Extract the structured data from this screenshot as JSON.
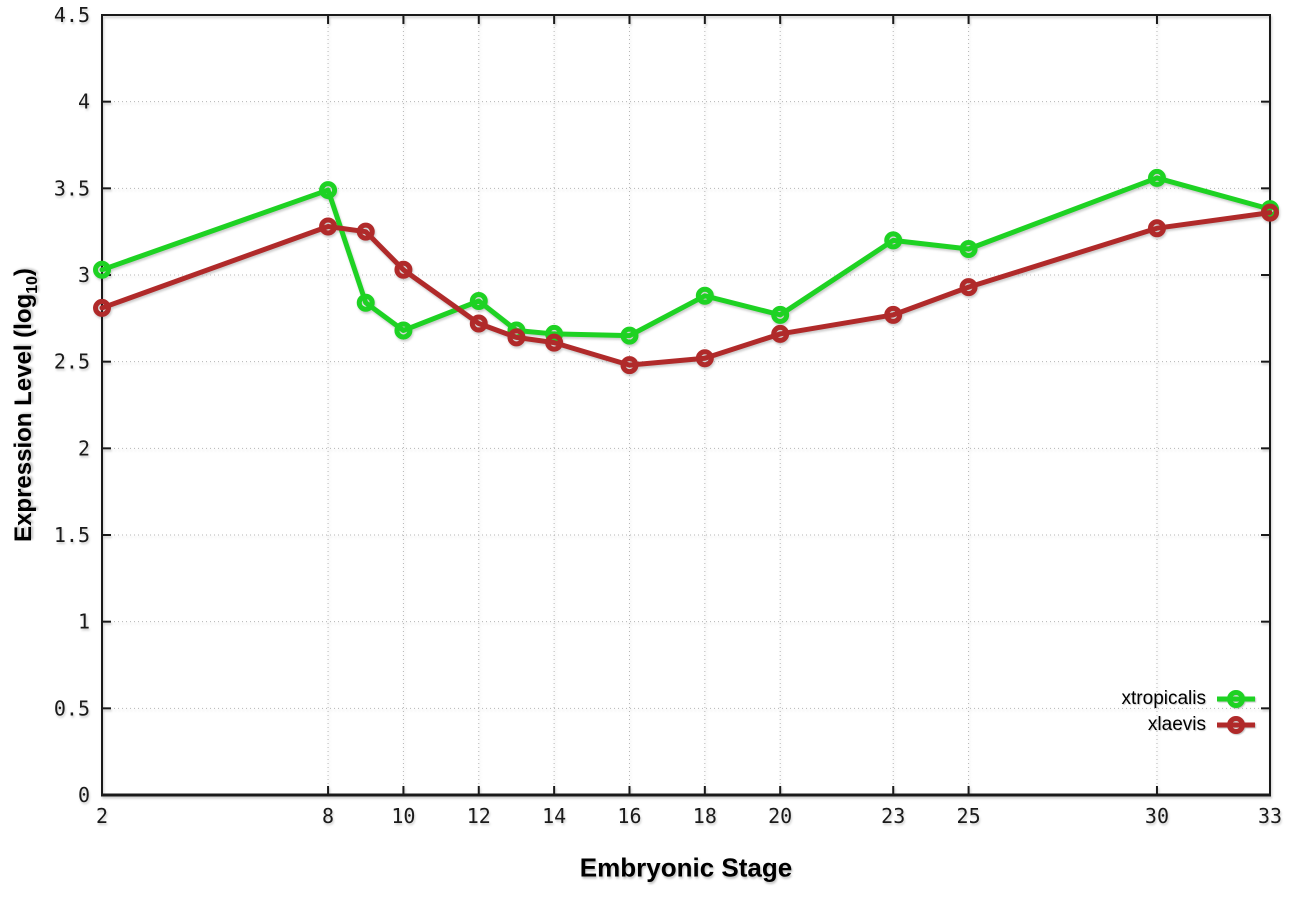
{
  "chart_data": {
    "type": "line",
    "title": "",
    "xlabel": "Embryonic Stage",
    "ylabel": "Expression Level (log10)",
    "ylabel_prefix": "Expression Level (log",
    "ylabel_sub": "10",
    "ylabel_suffix": ")",
    "xlim": [
      2,
      33
    ],
    "ylim": [
      0,
      4.5
    ],
    "grid": true,
    "grid_style": "dotted",
    "legend_position": "inside-bottom-right",
    "x_tick_values": [
      2,
      8,
      10,
      12,
      14,
      16,
      18,
      20,
      23,
      25,
      30,
      33
    ],
    "x_tick_labels": [
      "2",
      "8",
      "10",
      "12",
      "14",
      "16",
      "18",
      "20",
      "23",
      "25",
      "30",
      "33"
    ],
    "y_tick_values": [
      0,
      0.5,
      1,
      1.5,
      2,
      2.5,
      3,
      3.5,
      4,
      4.5
    ],
    "y_tick_labels": [
      "0",
      "0.5",
      "1",
      "1.5",
      "2",
      "2.5",
      "3",
      "3.5",
      "4",
      "4.5"
    ],
    "x": [
      2,
      8,
      9,
      10,
      12,
      13,
      14,
      16,
      18,
      20,
      23,
      25,
      30,
      33
    ],
    "series": [
      {
        "name": "xtropicalis",
        "color": "#1ed223",
        "marker": "open-circle",
        "values": [
          3.03,
          3.49,
          2.84,
          2.68,
          2.85,
          2.68,
          2.66,
          2.65,
          2.88,
          2.77,
          3.2,
          3.15,
          3.56,
          3.38
        ]
      },
      {
        "name": "xlaevis",
        "color": "#b02a2a",
        "marker": "open-circle",
        "values": [
          2.81,
          3.28,
          3.25,
          3.03,
          2.72,
          2.64,
          2.61,
          2.48,
          2.52,
          2.66,
          2.77,
          2.93,
          3.27,
          3.36
        ]
      }
    ],
    "colors": {
      "grid": "#b5b5b5",
      "axis": "#1a1a1a",
      "background": "#ffffff"
    }
  }
}
